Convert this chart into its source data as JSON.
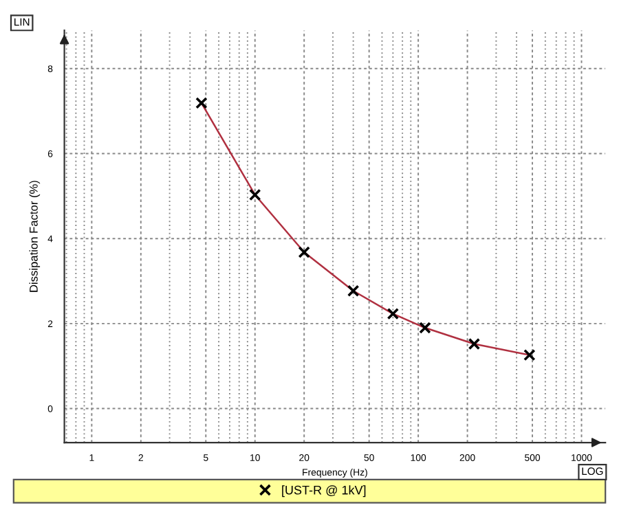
{
  "chart_data": {
    "type": "line",
    "xlabel": "Frequency (Hz)",
    "ylabel": "Dissipation Factor (%)",
    "log": "x",
    "xlim": [
      0.68,
      1400
    ],
    "ylim": [
      -0.8,
      8.9
    ],
    "xticks": [
      {
        "value": 0.7,
        "label": null
      },
      {
        "value": 0.8,
        "label": null
      },
      {
        "value": 0.9,
        "label": null
      },
      1,
      2,
      {
        "value": 3,
        "label": null
      },
      {
        "value": 4,
        "label": null
      },
      5,
      {
        "value": 6,
        "label": null
      },
      {
        "value": 7,
        "label": null
      },
      {
        "value": 8,
        "label": null
      },
      {
        "value": 9,
        "label": null
      },
      10,
      20,
      {
        "value": 30,
        "label": null
      },
      {
        "value": 40,
        "label": null
      },
      50,
      {
        "value": 60,
        "label": null
      },
      {
        "value": 70,
        "label": null
      },
      {
        "value": 80,
        "label": null
      },
      {
        "value": 90,
        "label": null
      },
      100,
      200,
      {
        "value": 300,
        "label": null
      },
      {
        "value": 400,
        "label": null
      },
      500,
      {
        "value": 600,
        "label": null
      },
      {
        "value": 700,
        "label": null
      },
      {
        "value": 800,
        "label": null
      },
      {
        "value": 900,
        "label": null
      },
      1000
    ],
    "yticks": [
      0,
      2,
      4,
      6,
      8
    ],
    "grid": true,
    "legend": "bottom",
    "marker": "cross",
    "line_style": "solid",
    "annotations": [
      "LIN",
      "LOG"
    ],
    "series": [
      {
        "name": "[UST-R @ 1kV]",
        "color": "#b03040",
        "x": [
          4.7,
          10,
          20,
          40,
          70,
          110,
          220,
          480
        ],
        "values": [
          7.19,
          5.03,
          3.68,
          2.77,
          2.23,
          1.9,
          1.52,
          1.26
        ]
      }
    ]
  }
}
